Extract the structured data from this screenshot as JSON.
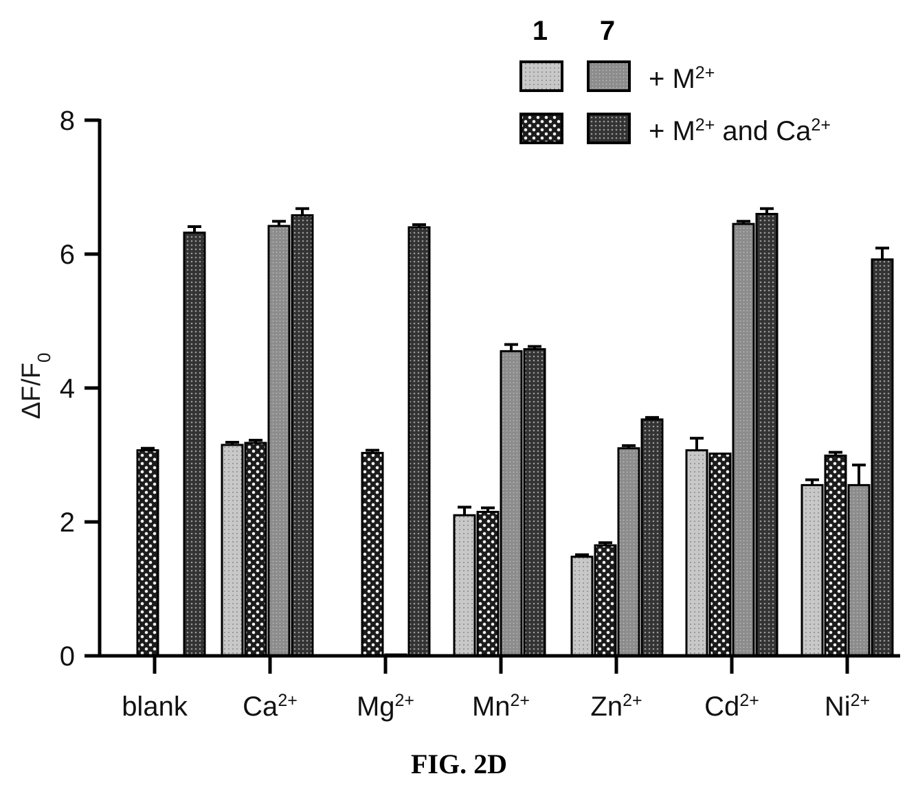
{
  "chart_data": {
    "type": "bar",
    "title": "",
    "caption": "FIG. 2D",
    "ylabel": {
      "main": "ΔF/F",
      "sub": "0"
    },
    "ylim": [
      0,
      8
    ],
    "yticks": [
      "0",
      "2",
      "4",
      "6",
      "8"
    ],
    "categories": [
      {
        "base": "blank",
        "sup": ""
      },
      {
        "base": "Ca",
        "sup": "2+"
      },
      {
        "base": "Mg",
        "sup": "2+"
      },
      {
        "base": "Mn",
        "sup": "2+"
      },
      {
        "base": "Zn",
        "sup": "2+"
      },
      {
        "base": "Cd",
        "sup": "2+"
      },
      {
        "base": "Ni",
        "sup": "2+"
      }
    ],
    "legend": {
      "position": "top-right",
      "columns": [
        "1",
        "7"
      ],
      "rows": [
        {
          "label": "+ M",
          "sup": "2+",
          "suffix": ""
        },
        {
          "label": "+ M",
          "sup": "2+",
          "suffix": " and Ca",
          "sup2": "2+"
        }
      ]
    },
    "series": [
      {
        "compound": "1",
        "condition": "+ M2+",
        "color": "#c4c4c4",
        "pattern": "light-dots",
        "values": [
          0,
          3.15,
          0,
          2.1,
          1.48,
          3.07,
          2.55
        ],
        "errors": [
          0,
          0.04,
          0,
          0.12,
          0.03,
          0.18,
          0.08
        ]
      },
      {
        "compound": "1",
        "condition": "+ M2+ and Ca2+",
        "color": "#1e1e1e",
        "pattern": "checker",
        "values": [
          3.07,
          3.18,
          3.03,
          2.15,
          1.65,
          3.02,
          2.99
        ],
        "errors": [
          0.03,
          0.04,
          0.04,
          0.06,
          0.04,
          0.0,
          0.05
        ]
      },
      {
        "compound": "7",
        "condition": "+ M2+",
        "color": "#888888",
        "pattern": "grey-dots",
        "values": [
          0,
          6.42,
          0.02,
          4.55,
          3.1,
          6.45,
          2.55
        ],
        "errors": [
          0,
          0.07,
          0,
          0.1,
          0.04,
          0.04,
          0.3
        ]
      },
      {
        "compound": "7",
        "condition": "+ M2+ and Ca2+",
        "color": "#3a3a3a",
        "pattern": "dark-dots",
        "values": [
          6.32,
          6.58,
          6.4,
          4.58,
          3.53,
          6.6,
          5.92
        ],
        "errors": [
          0.09,
          0.1,
          0.04,
          0.04,
          0.03,
          0.08,
          0.17
        ]
      }
    ]
  }
}
